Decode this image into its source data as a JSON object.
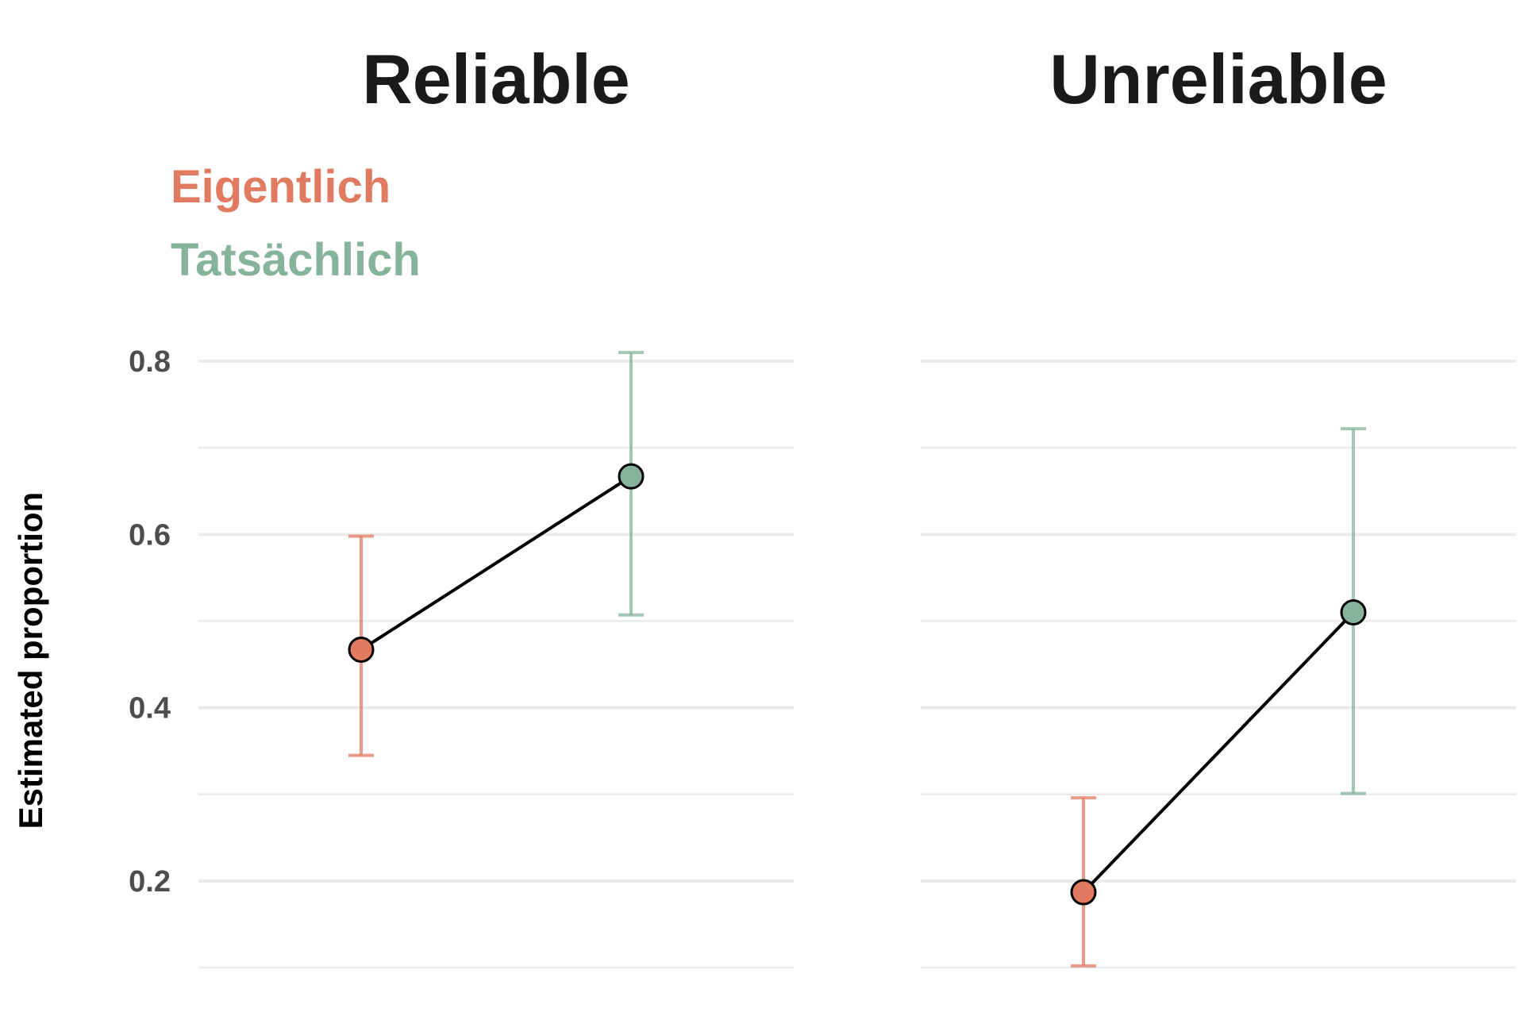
{
  "chart_data": {
    "type": "line",
    "facets": [
      "Reliable",
      "Unreliable"
    ],
    "ylabel": "Estimated proportion",
    "xlabel": "",
    "ylim": [
      0.1,
      0.8
    ],
    "yticks": [
      0.2,
      0.4,
      0.6,
      0.8
    ],
    "ytick_labels": [
      "0.2",
      "0.4",
      "0.6",
      "0.8"
    ],
    "legend": {
      "position": "top-left",
      "entries": [
        {
          "name": "Eigentlich",
          "color": "#E07B62"
        },
        {
          "name": "Tatsächlich",
          "color": "#85B39C"
        }
      ]
    },
    "categories": [
      "Eigentlich",
      "Tatsächlich"
    ],
    "colors": {
      "Eigentlich": "#E07B62",
      "Tatsächlich": "#85B39C",
      "connector": "#000000"
    },
    "grid": true,
    "panels": [
      {
        "title": "Reliable",
        "points": [
          {
            "category": "Eigentlich",
            "value": 0.467,
            "lower": 0.345,
            "upper": 0.598
          },
          {
            "category": "Tatsächlich",
            "value": 0.667,
            "upper": 0.81,
            "lower": 0.507
          }
        ]
      },
      {
        "title": "Unreliable",
        "points": [
          {
            "category": "Eigentlich",
            "value": 0.187,
            "lower": 0.102,
            "upper": 0.296
          },
          {
            "category": "Tatsächlich",
            "value": 0.51,
            "lower": 0.301,
            "upper": 0.722
          }
        ]
      }
    ]
  }
}
